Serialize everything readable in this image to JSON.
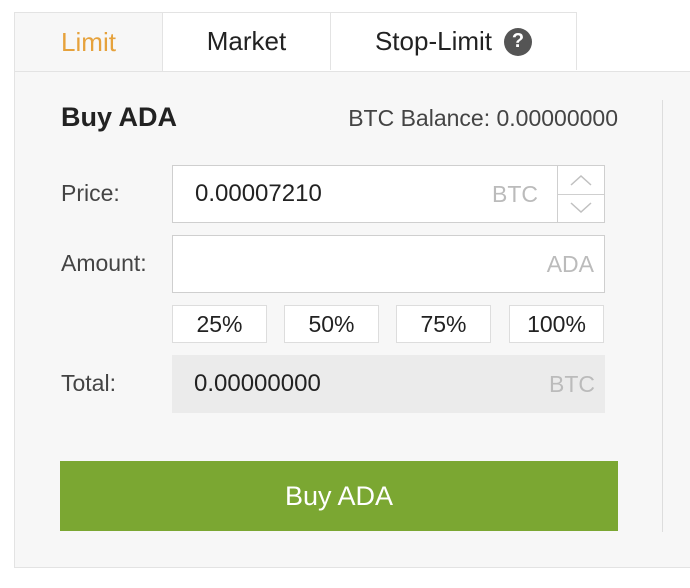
{
  "tabs": {
    "limit": "Limit",
    "market": "Market",
    "stop_limit": "Stop-Limit",
    "help": "?"
  },
  "form": {
    "title": "Buy ADA",
    "balance": "BTC Balance: 0.00000000",
    "price_label": "Price:",
    "price_value": "0.00007210",
    "price_unit": "BTC",
    "amount_label": "Amount:",
    "amount_value": "",
    "amount_unit": "ADA",
    "percent_options": [
      "25%",
      "50%",
      "75%",
      "100%"
    ],
    "total_label": "Total:",
    "total_value": "0.00000000",
    "total_unit": "BTC",
    "submit": "Buy ADA"
  },
  "colors": {
    "active_tab": "#e6a23c",
    "buy_button": "#7ba732"
  }
}
